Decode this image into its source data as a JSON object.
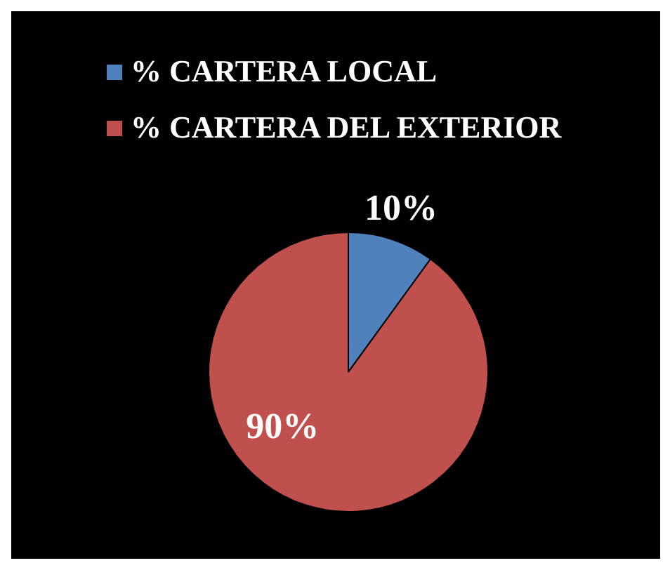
{
  "chart_data": {
    "type": "pie",
    "categories": [
      "% CARTERA LOCAL",
      "% CARTERA DEL EXTERIOR"
    ],
    "values": [
      10,
      90
    ],
    "colors": [
      "#4f81bd",
      "#c0504d"
    ],
    "value_labels": [
      "10%",
      "90%"
    ],
    "legend": "top left"
  }
}
